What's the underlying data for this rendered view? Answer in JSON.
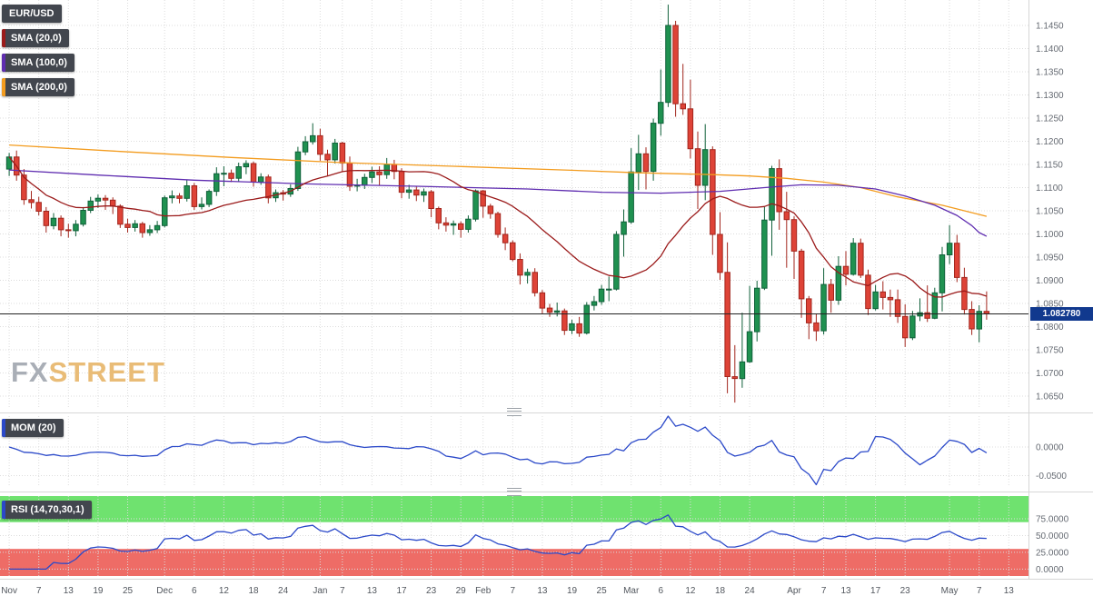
{
  "window": {
    "watermark_fx": "FX",
    "watermark_street": "STREET"
  },
  "legend": {
    "symbol": "EUR/USD",
    "overlays": [
      {
        "label": "SMA (20,0)",
        "period": 20,
        "color": "#9b1b1b"
      },
      {
        "label": "SMA (100,0)",
        "period": 100,
        "color": "#5f2db0"
      },
      {
        "label": "SMA (200,0)",
        "period": 200,
        "color": "#f39c1f"
      }
    ]
  },
  "last_price": {
    "label": "1.082780",
    "value": 1.08278,
    "box_color": "#11398e",
    "line_color": "#222222"
  },
  "chart_data": {
    "type": "candlestick",
    "symbol": "EUR/USD",
    "y_ticks": [
      "1.1450",
      "1.1400",
      "1.1350",
      "1.1300",
      "1.1250",
      "1.1200",
      "1.1150",
      "1.1100",
      "1.1050",
      "1.1000",
      "1.0950",
      "1.0900",
      "1.0850",
      "1.0800",
      "1.0750",
      "1.0700",
      "1.0650"
    ],
    "x_ticks": [
      [
        "Nov",
        0
      ],
      [
        "7",
        4
      ],
      [
        "13",
        8
      ],
      [
        "19",
        12
      ],
      [
        "25",
        16
      ],
      [
        "Dec",
        21
      ],
      [
        "6",
        25
      ],
      [
        "12",
        29
      ],
      [
        "18",
        33
      ],
      [
        "24",
        37
      ],
      [
        "Jan",
        42
      ],
      [
        "7",
        45
      ],
      [
        "13",
        49
      ],
      [
        "17",
        53
      ],
      [
        "23",
        57
      ],
      [
        "29",
        61
      ],
      [
        "Feb",
        64
      ],
      [
        "7",
        68
      ],
      [
        "13",
        72
      ],
      [
        "19",
        76
      ],
      [
        "25",
        80
      ],
      [
        "Mar",
        84
      ],
      [
        "6",
        88
      ],
      [
        "12",
        92
      ],
      [
        "18",
        96
      ],
      [
        "24",
        100
      ],
      [
        "Apr",
        106
      ],
      [
        "7",
        110
      ],
      [
        "13",
        113
      ],
      [
        "17",
        117
      ],
      [
        "23",
        121
      ],
      [
        "May",
        127
      ],
      [
        "7",
        131
      ],
      [
        "13",
        135
      ]
    ],
    "x_slots": 139,
    "colors": {
      "up": "#1f9150",
      "up_border": "#10603a",
      "down": "#de4337",
      "down_border": "#a2261d"
    },
    "candles": [
      [
        1.114,
        1.1175,
        1.1125,
        1.1166
      ],
      [
        1.1166,
        1.118,
        1.1115,
        1.1127
      ],
      [
        1.1127,
        1.114,
        1.1063,
        1.1074
      ],
      [
        1.1074,
        1.1093,
        1.1055,
        1.1068
      ],
      [
        1.1068,
        1.108,
        1.104,
        1.1049
      ],
      [
        1.1049,
        1.1058,
        1.1003,
        1.1018
      ],
      [
        1.1018,
        1.1045,
        1.101,
        1.1034
      ],
      [
        1.1034,
        1.104,
        1.0995,
        1.1009
      ],
      [
        1.1009,
        1.1022,
        1.0992,
        1.1007
      ],
      [
        1.1007,
        1.103,
        1.0995,
        1.1021
      ],
      [
        1.1021,
        1.1058,
        1.1016,
        1.1051
      ],
      [
        1.1051,
        1.108,
        1.1045,
        1.1071
      ],
      [
        1.1071,
        1.1085,
        1.1056,
        1.1077
      ],
      [
        1.1077,
        1.1084,
        1.1052,
        1.1073
      ],
      [
        1.1073,
        1.1079,
        1.1043,
        1.106
      ],
      [
        1.106,
        1.1064,
        1.1013,
        1.1021
      ],
      [
        1.1021,
        1.1033,
        1.1003,
        1.1014
      ],
      [
        1.1014,
        1.103,
        1.1005,
        1.1022
      ],
      [
        1.1022,
        1.1026,
        1.0992,
        1.1003
      ],
      [
        1.1003,
        1.1019,
        1.0996,
        1.1009
      ],
      [
        1.1009,
        1.1028,
        1.1002,
        1.1018
      ],
      [
        1.1018,
        1.1083,
        1.1014,
        1.1078
      ],
      [
        1.1078,
        1.1094,
        1.1066,
        1.1082
      ],
      [
        1.1082,
        1.1088,
        1.1066,
        1.1077
      ],
      [
        1.1077,
        1.1116,
        1.107,
        1.1104
      ],
      [
        1.1104,
        1.111,
        1.1052,
        1.1059
      ],
      [
        1.1059,
        1.1079,
        1.1053,
        1.1064
      ],
      [
        1.1064,
        1.1096,
        1.1058,
        1.1092
      ],
      [
        1.1092,
        1.1144,
        1.1082,
        1.113
      ],
      [
        1.113,
        1.1146,
        1.1103,
        1.1131
      ],
      [
        1.1131,
        1.1139,
        1.1112,
        1.112
      ],
      [
        1.112,
        1.1154,
        1.1113,
        1.1145
      ],
      [
        1.1145,
        1.1159,
        1.1129,
        1.1152
      ],
      [
        1.1152,
        1.1156,
        1.1102,
        1.1112
      ],
      [
        1.1112,
        1.1131,
        1.1106,
        1.1123
      ],
      [
        1.1123,
        1.1128,
        1.1066,
        1.1078
      ],
      [
        1.1078,
        1.1096,
        1.1069,
        1.1089
      ],
      [
        1.1089,
        1.1095,
        1.1072,
        1.1086
      ],
      [
        1.1086,
        1.1107,
        1.108,
        1.1098
      ],
      [
        1.1098,
        1.1188,
        1.1093,
        1.1177
      ],
      [
        1.1177,
        1.1211,
        1.117,
        1.1199
      ],
      [
        1.1199,
        1.1239,
        1.1193,
        1.1212
      ],
      [
        1.1212,
        1.1227,
        1.1158,
        1.1172
      ],
      [
        1.1172,
        1.1182,
        1.1125,
        1.116
      ],
      [
        1.116,
        1.1205,
        1.1152,
        1.1196
      ],
      [
        1.1196,
        1.1199,
        1.1135,
        1.1153
      ],
      [
        1.1153,
        1.1167,
        1.1093,
        1.1103
      ],
      [
        1.1103,
        1.1119,
        1.1092,
        1.1105
      ],
      [
        1.1105,
        1.113,
        1.1097,
        1.1122
      ],
      [
        1.1122,
        1.1145,
        1.111,
        1.1134
      ],
      [
        1.1134,
        1.1146,
        1.1104,
        1.1128
      ],
      [
        1.1128,
        1.1164,
        1.1119,
        1.115
      ],
      [
        1.115,
        1.116,
        1.1118,
        1.1135
      ],
      [
        1.1135,
        1.1142,
        1.1077,
        1.109
      ],
      [
        1.109,
        1.1106,
        1.1076,
        1.1095
      ],
      [
        1.1095,
        1.1102,
        1.1071,
        1.1084
      ],
      [
        1.1084,
        1.1098,
        1.1069,
        1.1091
      ],
      [
        1.1091,
        1.1095,
        1.1036,
        1.1055
      ],
      [
        1.1055,
        1.1059,
        1.101,
        1.1024
      ],
      [
        1.1024,
        1.1036,
        1.1005,
        1.1019
      ],
      [
        1.1019,
        1.1029,
        1.0998,
        1.1022
      ],
      [
        1.1022,
        1.1027,
        1.0992,
        1.101
      ],
      [
        1.101,
        1.104,
        1.1003,
        1.1032
      ],
      [
        1.1032,
        1.1096,
        1.1027,
        1.1093
      ],
      [
        1.1093,
        1.1095,
        1.1035,
        1.106
      ],
      [
        1.106,
        1.1065,
        1.1033,
        1.1044
      ],
      [
        1.1044,
        1.1048,
        1.0992,
        1.0999
      ],
      [
        1.0999,
        1.1014,
        1.0965,
        1.0981
      ],
      [
        1.0981,
        1.0986,
        1.0941,
        1.0945
      ],
      [
        1.0945,
        1.0958,
        1.0891,
        1.0911
      ],
      [
        1.0911,
        1.0925,
        1.0893,
        1.0917
      ],
      [
        1.0917,
        1.0926,
        1.0865,
        1.0873
      ],
      [
        1.0873,
        1.0879,
        1.0827,
        1.084
      ],
      [
        1.084,
        1.0849,
        1.0821,
        1.0831
      ],
      [
        1.0831,
        1.0852,
        1.0822,
        1.0834
      ],
      [
        1.0834,
        1.0839,
        1.0782,
        1.0792
      ],
      [
        1.0792,
        1.0815,
        1.0784,
        1.0806
      ],
      [
        1.0806,
        1.0821,
        1.0778,
        1.0786
      ],
      [
        1.0786,
        1.0853,
        1.0783,
        1.0846
      ],
      [
        1.0846,
        1.0866,
        1.0835,
        1.0854
      ],
      [
        1.0854,
        1.089,
        1.0847,
        1.0881
      ],
      [
        1.0881,
        1.0908,
        1.0855,
        1.0881
      ],
      [
        1.0881,
        1.1006,
        1.0878,
        1.0999
      ],
      [
        1.0999,
        1.1053,
        1.0951,
        1.1026
      ],
      [
        1.1026,
        1.1185,
        1.1022,
        1.1134
      ],
      [
        1.1134,
        1.1214,
        1.1095,
        1.1173
      ],
      [
        1.1173,
        1.1187,
        1.1096,
        1.1135
      ],
      [
        1.1135,
        1.1249,
        1.1115,
        1.1239
      ],
      [
        1.1239,
        1.1355,
        1.1212,
        1.1284
      ],
      [
        1.1284,
        1.1495,
        1.1274,
        1.145
      ],
      [
        1.145,
        1.146,
        1.1253,
        1.1281
      ],
      [
        1.1281,
        1.1367,
        1.1257,
        1.127
      ],
      [
        1.127,
        1.1333,
        1.1163,
        1.1184
      ],
      [
        1.1184,
        1.1221,
        1.1054,
        1.1105
      ],
      [
        1.1105,
        1.1237,
        1.1073,
        1.1182
      ],
      [
        1.1182,
        1.1189,
        1.0955,
        1.0999
      ],
      [
        1.0999,
        1.1047,
        1.0901,
        1.0917
      ],
      [
        1.0917,
        1.0982,
        1.0656,
        1.0692
      ],
      [
        1.0692,
        1.076,
        1.0636,
        1.0688
      ],
      [
        1.0688,
        1.083,
        1.0668,
        1.0724
      ],
      [
        1.0724,
        1.0888,
        1.0722,
        1.0789
      ],
      [
        1.0789,
        1.0899,
        1.0768,
        1.0883
      ],
      [
        1.0883,
        1.1059,
        1.0879,
        1.103
      ],
      [
        1.103,
        1.1147,
        1.0953,
        1.1141
      ],
      [
        1.1141,
        1.1161,
        1.1009,
        1.1048
      ],
      [
        1.1048,
        1.1091,
        1.0927,
        1.1031
      ],
      [
        1.1031,
        1.1038,
        1.0903,
        1.0963
      ],
      [
        1.0963,
        1.0968,
        1.0819,
        1.086
      ],
      [
        1.086,
        1.0866,
        1.0773,
        1.0808
      ],
      [
        1.0808,
        1.0827,
        1.0769,
        1.0791
      ],
      [
        1.0791,
        1.0926,
        1.0783,
        1.0891
      ],
      [
        1.0891,
        1.0903,
        1.083,
        1.0857
      ],
      [
        1.0857,
        1.0952,
        1.0847,
        1.093
      ],
      [
        1.093,
        1.0963,
        1.0889,
        1.0913
      ],
      [
        1.0913,
        1.0991,
        1.091,
        1.098
      ],
      [
        1.098,
        1.099,
        1.0905,
        1.0911
      ],
      [
        1.0911,
        1.0923,
        1.0825,
        1.0839
      ],
      [
        1.0839,
        1.089,
        1.0835,
        1.0875
      ],
      [
        1.0875,
        1.0898,
        1.0837,
        1.0863
      ],
      [
        1.0863,
        1.088,
        1.0821,
        1.0858
      ],
      [
        1.0858,
        1.088,
        1.0808,
        1.0822
      ],
      [
        1.0822,
        1.0848,
        1.0756,
        1.0776
      ],
      [
        1.0776,
        1.0834,
        1.0771,
        1.0823
      ],
      [
        1.0823,
        1.0861,
        1.0812,
        1.083
      ],
      [
        1.083,
        1.0889,
        1.081,
        1.0818
      ],
      [
        1.0818,
        1.0884,
        1.0816,
        1.0873
      ],
      [
        1.0873,
        1.0972,
        1.0833,
        1.0955
      ],
      [
        1.0955,
        1.1019,
        1.0935,
        1.098
      ],
      [
        1.098,
        1.0998,
        1.0896,
        1.0906
      ],
      [
        1.0906,
        1.0927,
        1.0826,
        1.0837
      ],
      [
        1.0837,
        1.0855,
        1.0782,
        1.0795
      ],
      [
        1.0795,
        1.0846,
        1.0766,
        1.0833
      ],
      [
        1.0833,
        1.0876,
        1.0815,
        1.0828
      ]
    ],
    "overlays": {
      "sma20_period": 20,
      "sma100_points": [
        [
          0,
          1.1138
        ],
        [
          12,
          1.1127
        ],
        [
          25,
          1.1116
        ],
        [
          40,
          1.1108
        ],
        [
          55,
          1.1103
        ],
        [
          70,
          1.1097
        ],
        [
          80,
          1.109
        ],
        [
          88,
          1.1088
        ],
        [
          96,
          1.1092
        ],
        [
          102,
          1.11
        ],
        [
          107,
          1.1106
        ],
        [
          112,
          1.1105
        ],
        [
          117,
          1.1097
        ],
        [
          121,
          1.1082
        ],
        [
          125,
          1.1062
        ],
        [
          128,
          1.104
        ],
        [
          130,
          1.1018
        ],
        [
          131,
          1.1003
        ],
        [
          132,
          1.0995
        ]
      ],
      "sma200_points": [
        [
          0,
          1.1192
        ],
        [
          15,
          1.1178
        ],
        [
          30,
          1.1165
        ],
        [
          45,
          1.1154
        ],
        [
          60,
          1.1146
        ],
        [
          75,
          1.1138
        ],
        [
          85,
          1.1132
        ],
        [
          95,
          1.1128
        ],
        [
          100,
          1.1125
        ],
        [
          105,
          1.112
        ],
        [
          110,
          1.1112
        ],
        [
          115,
          1.11
        ],
        [
          120,
          1.108
        ],
        [
          126,
          1.1062
        ],
        [
          132,
          1.1038
        ]
      ]
    },
    "indicators": {
      "momentum": {
        "label": "MOM (20)",
        "period": 20,
        "color": "#2b49c9",
        "ticks": [
          {
            "label": "0.0000",
            "value": 0
          },
          {
            "label": "-0.0500",
            "value": -0.05
          }
        ]
      },
      "rsi": {
        "label": "RSI (14,70,30,1)",
        "period": 14,
        "overbought": 70,
        "oversold": 30,
        "color": "#2b49c9",
        "overbought_color": "#6fe26f",
        "oversold_color": "#ee6c66",
        "ticks": [
          {
            "label": "75.0000",
            "value": 75
          },
          {
            "label": "50.0000",
            "value": 50
          },
          {
            "label": "25.0000",
            "value": 25
          },
          {
            "label": "0.0000",
            "value": 0
          }
        ]
      }
    }
  }
}
